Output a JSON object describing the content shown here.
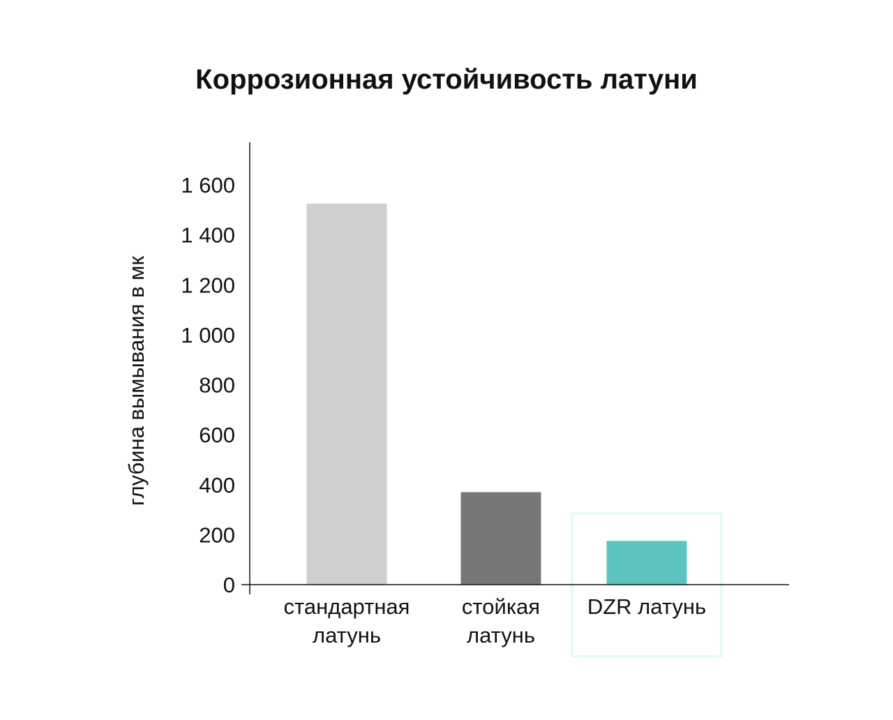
{
  "chart_data": {
    "type": "bar",
    "title": "Коррозионная устойчивость латуни",
    "xlabel": "",
    "ylabel": "глубина вымывания в мк",
    "categories": [
      [
        "стандартная",
        "латунь"
      ],
      [
        "стойкая",
        "латунь"
      ],
      [
        "DZR латунь"
      ]
    ],
    "values": [
      1525,
      370,
      175
    ],
    "colors": [
      "#cfcfcf",
      "#777777",
      "#5cc4be"
    ],
    "highlight_color": "#e6fafa",
    "yticks": [
      0,
      200,
      400,
      600,
      800,
      1000,
      1200,
      1400,
      1600
    ],
    "ytick_labels": [
      "0",
      "200",
      "400",
      "600",
      "800",
      "1 000",
      "1 200",
      "1 400",
      "1 600"
    ],
    "ylim": [
      0,
      1600
    ],
    "grid": false,
    "legend": "none"
  }
}
